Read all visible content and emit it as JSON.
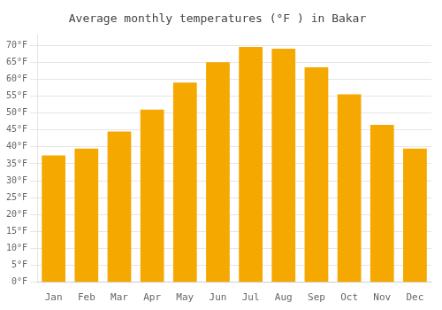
{
  "chart_data": {
    "type": "bar",
    "title": "Average monthly temperatures (°F ) in Bakar",
    "categories": [
      "Jan",
      "Feb",
      "Mar",
      "Apr",
      "May",
      "Jun",
      "Jul",
      "Aug",
      "Sep",
      "Oct",
      "Nov",
      "Dec"
    ],
    "values": [
      37.5,
      39.5,
      44.5,
      51.0,
      59.0,
      65.0,
      69.5,
      69.0,
      63.5,
      55.5,
      46.5,
      39.5
    ],
    "color": "#F5A800",
    "ylim": [
      0,
      73
    ],
    "yticks": [
      {
        "value": 0,
        "label": "0°F"
      },
      {
        "value": 5,
        "label": "5°F"
      },
      {
        "value": 10,
        "label": "10°F"
      },
      {
        "value": 15,
        "label": "15°F"
      },
      {
        "value": 20,
        "label": "20°F"
      },
      {
        "value": 25,
        "label": "25°F"
      },
      {
        "value": 30,
        "label": "30°F"
      },
      {
        "value": 35,
        "label": "35°F"
      },
      {
        "value": 40,
        "label": "40°F"
      },
      {
        "value": 45,
        "label": "45°F"
      },
      {
        "value": 50,
        "label": "50°F"
      },
      {
        "value": 55,
        "label": "55°F"
      },
      {
        "value": 60,
        "label": "60°F"
      },
      {
        "value": 65,
        "label": "65°F"
      },
      {
        "value": 70,
        "label": "70°F"
      }
    ],
    "grid": true
  }
}
